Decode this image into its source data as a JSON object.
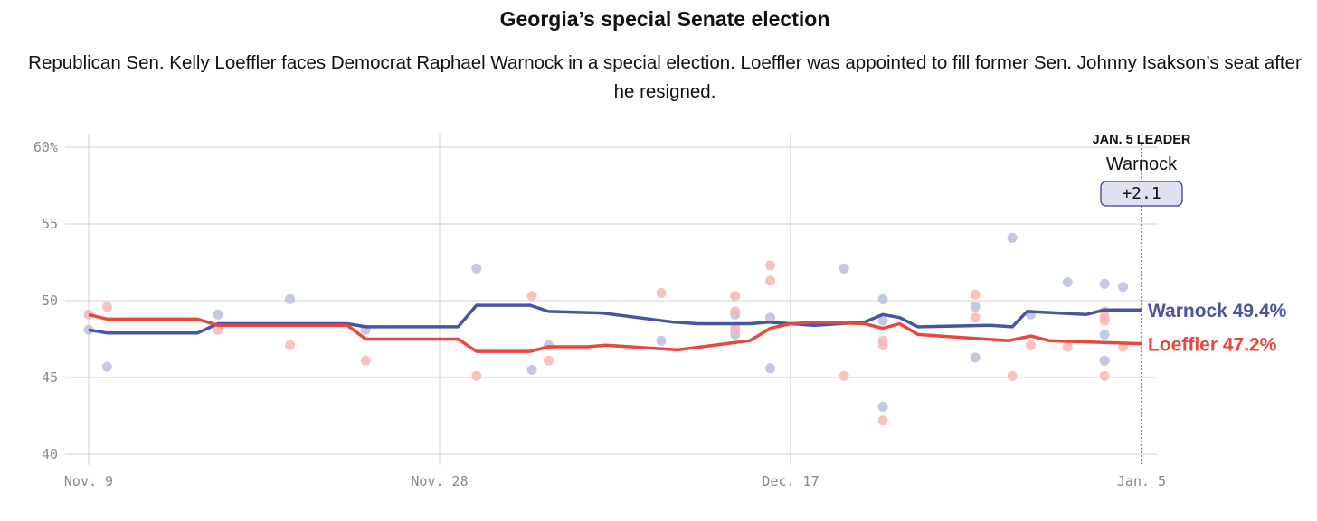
{
  "chart_data": {
    "type": "line",
    "title": "Georgia’s special Senate election",
    "subtitle": "Republican Sen. Kelly Loeffler faces Democrat Raphael Warnock in a special election. Loeffler was appointed to fill former Sen. Johnny Isakson’s seat after he resigned.",
    "x_unit": "days since Nov. 9",
    "xlim": [
      0,
      57
    ],
    "ylim": [
      40,
      60
    ],
    "y_ticks": [
      {
        "v": 60,
        "label": "60%"
      },
      {
        "v": 55,
        "label": "55"
      },
      {
        "v": 50,
        "label": "50"
      },
      {
        "v": 45,
        "label": "45"
      },
      {
        "v": 40,
        "label": "40"
      }
    ],
    "x_ticks": [
      {
        "v": 0,
        "label": "Nov. 9"
      },
      {
        "v": 19,
        "label": "Nov. 28"
      },
      {
        "v": 38,
        "label": "Dec. 17"
      },
      {
        "v": 57,
        "label": "Jan. 5"
      }
    ],
    "grid": true,
    "series": [
      {
        "name": "Warnock",
        "color": "#4a55a2",
        "dot_color": "#b9bfdd",
        "end_label": "Warnock 49.4%",
        "line": [
          [
            0,
            48.1
          ],
          [
            1,
            47.9
          ],
          [
            5.9,
            47.9
          ],
          [
            7,
            48.5
          ],
          [
            14,
            48.5
          ],
          [
            15,
            48.3
          ],
          [
            20,
            48.3
          ],
          [
            21,
            49.7
          ],
          [
            23.9,
            49.7
          ],
          [
            24.9,
            49.3
          ],
          [
            27.8,
            49.2
          ],
          [
            31.7,
            48.6
          ],
          [
            33,
            48.5
          ],
          [
            35.8,
            48.5
          ],
          [
            36.8,
            48.6
          ],
          [
            38,
            48.5
          ],
          [
            39.3,
            48.4
          ],
          [
            42,
            48.6
          ],
          [
            43,
            49.1
          ],
          [
            43.9,
            48.9
          ],
          [
            44.9,
            48.3
          ],
          [
            48.8,
            48.4
          ],
          [
            50,
            48.3
          ],
          [
            50.8,
            49.3
          ],
          [
            54,
            49.1
          ],
          [
            55,
            49.4
          ],
          [
            57,
            49.4
          ]
        ],
        "polls": [
          [
            0,
            48.1
          ],
          [
            1,
            45.7
          ],
          [
            7,
            49.1
          ],
          [
            10.9,
            50.1
          ],
          [
            15,
            48.1
          ],
          [
            21,
            52.1
          ],
          [
            24,
            45.5
          ],
          [
            24.9,
            47.1
          ],
          [
            31,
            47.4
          ],
          [
            35,
            47.8
          ],
          [
            35,
            48.2
          ],
          [
            35,
            49.1
          ],
          [
            36.9,
            48.9
          ],
          [
            36.9,
            45.6
          ],
          [
            40.9,
            52.1
          ],
          [
            43,
            50.1
          ],
          [
            43,
            48.7
          ],
          [
            43,
            43.1
          ],
          [
            48,
            49.6
          ],
          [
            48,
            46.3
          ],
          [
            50,
            54.1
          ],
          [
            51,
            49.1
          ],
          [
            53,
            51.2
          ],
          [
            55,
            51.1
          ],
          [
            56,
            50.9
          ],
          [
            55,
            47.8
          ],
          [
            55,
            46.1
          ]
        ]
      },
      {
        "name": "Loeffler",
        "color": "#e8473f",
        "dot_color": "#f6b8b4",
        "end_label": "Loeffler 47.2%",
        "line": [
          [
            0,
            49.1
          ],
          [
            1,
            48.8
          ],
          [
            5.9,
            48.8
          ],
          [
            7,
            48.4
          ],
          [
            14,
            48.4
          ],
          [
            15,
            47.5
          ],
          [
            20,
            47.5
          ],
          [
            21,
            46.7
          ],
          [
            23.9,
            46.7
          ],
          [
            24.9,
            47.0
          ],
          [
            27,
            47.0
          ],
          [
            28,
            47.1
          ],
          [
            31.9,
            46.8
          ],
          [
            35.8,
            47.4
          ],
          [
            36.9,
            48.2
          ],
          [
            38,
            48.5
          ],
          [
            39.3,
            48.6
          ],
          [
            42,
            48.5
          ],
          [
            43,
            48.2
          ],
          [
            43.9,
            48.5
          ],
          [
            44.9,
            47.8
          ],
          [
            49.8,
            47.4
          ],
          [
            51,
            47.7
          ],
          [
            52,
            47.4
          ],
          [
            57,
            47.2
          ]
        ],
        "polls": [
          [
            0,
            49.1
          ],
          [
            1,
            49.6
          ],
          [
            7,
            48.1
          ],
          [
            10.9,
            47.1
          ],
          [
            15,
            46.1
          ],
          [
            21,
            45.1
          ],
          [
            24,
            50.3
          ],
          [
            24.9,
            46.1
          ],
          [
            31,
            50.5
          ],
          [
            35,
            50.3
          ],
          [
            35,
            49.3
          ],
          [
            35,
            48.1
          ],
          [
            36.9,
            52.3
          ],
          [
            36.9,
            51.3
          ],
          [
            40.9,
            45.1
          ],
          [
            43,
            47.4
          ],
          [
            43,
            47.1
          ],
          [
            43,
            42.2
          ],
          [
            48,
            50.4
          ],
          [
            48,
            48.9
          ],
          [
            50,
            45.1
          ],
          [
            51,
            47.1
          ],
          [
            53,
            47.0
          ],
          [
            55,
            49.3
          ],
          [
            55,
            48.9
          ],
          [
            55,
            48.7
          ],
          [
            55,
            45.1
          ],
          [
            56,
            47.0
          ]
        ]
      }
    ],
    "annotation": {
      "heading": "JAN. 5 LEADER",
      "leader": "Warnock",
      "margin": "+2.1",
      "at_x": 57
    }
  }
}
